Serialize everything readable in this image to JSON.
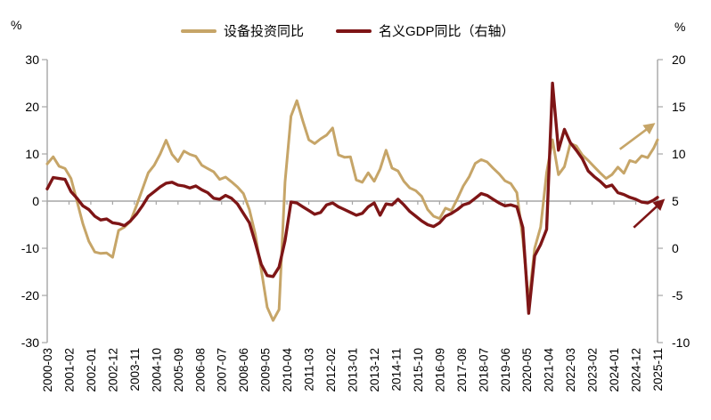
{
  "percent_left": "%",
  "percent_right": "%",
  "legend": [
    {
      "label": "设备投资同比",
      "color": "#C6A568"
    },
    {
      "label": "名义GDP同比（右轴）",
      "color": "#7E1516"
    }
  ],
  "layout_colors": {
    "axis": "#A6A6A6",
    "text": "#000000",
    "background": "#FFFFFF",
    "equipment_line": "#C6A568",
    "gdp_line": "#7E1516"
  },
  "chart_data": {
    "type": "line",
    "dual_axis": true,
    "title": "",
    "start_label": "2000-03",
    "end_label": "2025-11",
    "total_months": 308,
    "sample_step_months": 3,
    "x_tick_interval_months": 11,
    "x_tick_labels": [
      "2000-03",
      "2001-02",
      "2002-01",
      "2002-12",
      "2003-11",
      "2004-10",
      "2005-09",
      "2006-08",
      "2007-07",
      "2008-06",
      "2009-05",
      "2010-04",
      "2011-03",
      "2012-02",
      "2013-01",
      "2013-12",
      "2014-11",
      "2015-10",
      "2016-09",
      "2017-08",
      "2018-07",
      "2019-06",
      "2020-05",
      "2021-04",
      "2022-03",
      "2023-02",
      "2024-01",
      "2024-12",
      "2025-11"
    ],
    "left_axis": {
      "unit": "%",
      "range": [
        -30,
        30
      ],
      "ticks": [
        30,
        20,
        10,
        0,
        -10,
        -20,
        -30
      ]
    },
    "right_axis": {
      "unit": "%",
      "range": [
        -10,
        20
      ],
      "ticks": [
        20,
        15,
        10,
        5,
        0,
        -5,
        -10
      ]
    },
    "gridline_zero": true,
    "series": [
      {
        "name": "设备投资同比",
        "axis": "left",
        "color": "#C6A568",
        "line_width": 3,
        "values": [
          7.9,
          9.4,
          7.4,
          6.9,
          4.8,
          0.0,
          -4.8,
          -8.5,
          -10.8,
          -11.1,
          -11.0,
          -11.9,
          -6.2,
          -5.5,
          -4.3,
          -1.0,
          2.5,
          6.0,
          7.6,
          10.0,
          12.9,
          9.9,
          8.4,
          10.6,
          9.9,
          9.5,
          7.6,
          6.9,
          6.2,
          4.6,
          5.1,
          4.1,
          3.0,
          1.6,
          -1.8,
          -7.0,
          -14.5,
          -22.5,
          -25.3,
          -23.0,
          4.0,
          18.0,
          21.3,
          17.0,
          13.0,
          12.2,
          13.2,
          14.0,
          15.5,
          9.8,
          9.3,
          9.4,
          4.5,
          4.0,
          6.0,
          4.2,
          6.8,
          10.8,
          7.0,
          6.4,
          4.2,
          2.8,
          2.2,
          1.0,
          -1.8,
          -3.2,
          -3.7,
          -1.5,
          -2.0,
          0.5,
          3.2,
          5.2,
          8.0,
          8.8,
          8.3,
          7.0,
          5.8,
          4.3,
          3.7,
          1.8,
          -8.0,
          -21.5,
          -10.0,
          -5.5,
          6.0,
          13.0,
          5.6,
          7.3,
          12.2,
          11.7,
          9.8,
          8.6,
          7.3,
          6.0,
          4.8,
          5.6,
          7.2,
          5.9,
          8.6,
          8.2,
          9.6,
          9.2,
          11.2,
          13.0
        ]
      },
      {
        "name": "名义GDP同比（右轴）",
        "axis": "right",
        "color": "#7E1516",
        "line_width": 3.4,
        "values": [
          6.3,
          7.5,
          7.4,
          7.3,
          6.0,
          5.3,
          4.5,
          4.1,
          3.4,
          3.0,
          3.1,
          2.7,
          2.6,
          2.4,
          2.9,
          3.6,
          4.5,
          5.5,
          6.0,
          6.5,
          6.9,
          7.0,
          6.7,
          6.6,
          6.4,
          6.6,
          6.2,
          5.9,
          5.3,
          5.2,
          5.6,
          5.3,
          4.7,
          3.7,
          2.7,
          0.6,
          -1.7,
          -2.9,
          -3.0,
          -2.0,
          0.8,
          4.9,
          4.8,
          4.4,
          4.0,
          3.6,
          3.8,
          4.6,
          4.8,
          4.4,
          4.1,
          3.8,
          3.5,
          3.7,
          4.4,
          4.8,
          3.5,
          4.7,
          4.6,
          5.2,
          4.6,
          3.9,
          3.4,
          2.9,
          2.5,
          2.3,
          2.7,
          3.4,
          3.7,
          4.1,
          4.6,
          4.8,
          5.3,
          5.8,
          5.6,
          5.2,
          4.8,
          4.5,
          4.6,
          4.4,
          2.2,
          -6.9,
          -0.8,
          0.4,
          2.0,
          17.5,
          10.4,
          12.6,
          11.2,
          10.4,
          9.5,
          8.2,
          7.6,
          7.1,
          6.5,
          6.7,
          5.9,
          5.7,
          5.4,
          5.2,
          4.9,
          4.8,
          5.1,
          5.4
        ]
      }
    ],
    "annotations": [
      {
        "name": "up-arrow-equipment",
        "axis": "left",
        "color": "#C6A568",
        "from": {
          "month": 289,
          "value": 11.0
        },
        "to": {
          "month": 305,
          "value": 16.0
        }
      },
      {
        "name": "up-arrow-gdp",
        "axis": "right",
        "color": "#7E1516",
        "from": {
          "month": 296,
          "value": 2.2
        },
        "to": {
          "month": 310,
          "value": 4.9
        }
      }
    ]
  }
}
